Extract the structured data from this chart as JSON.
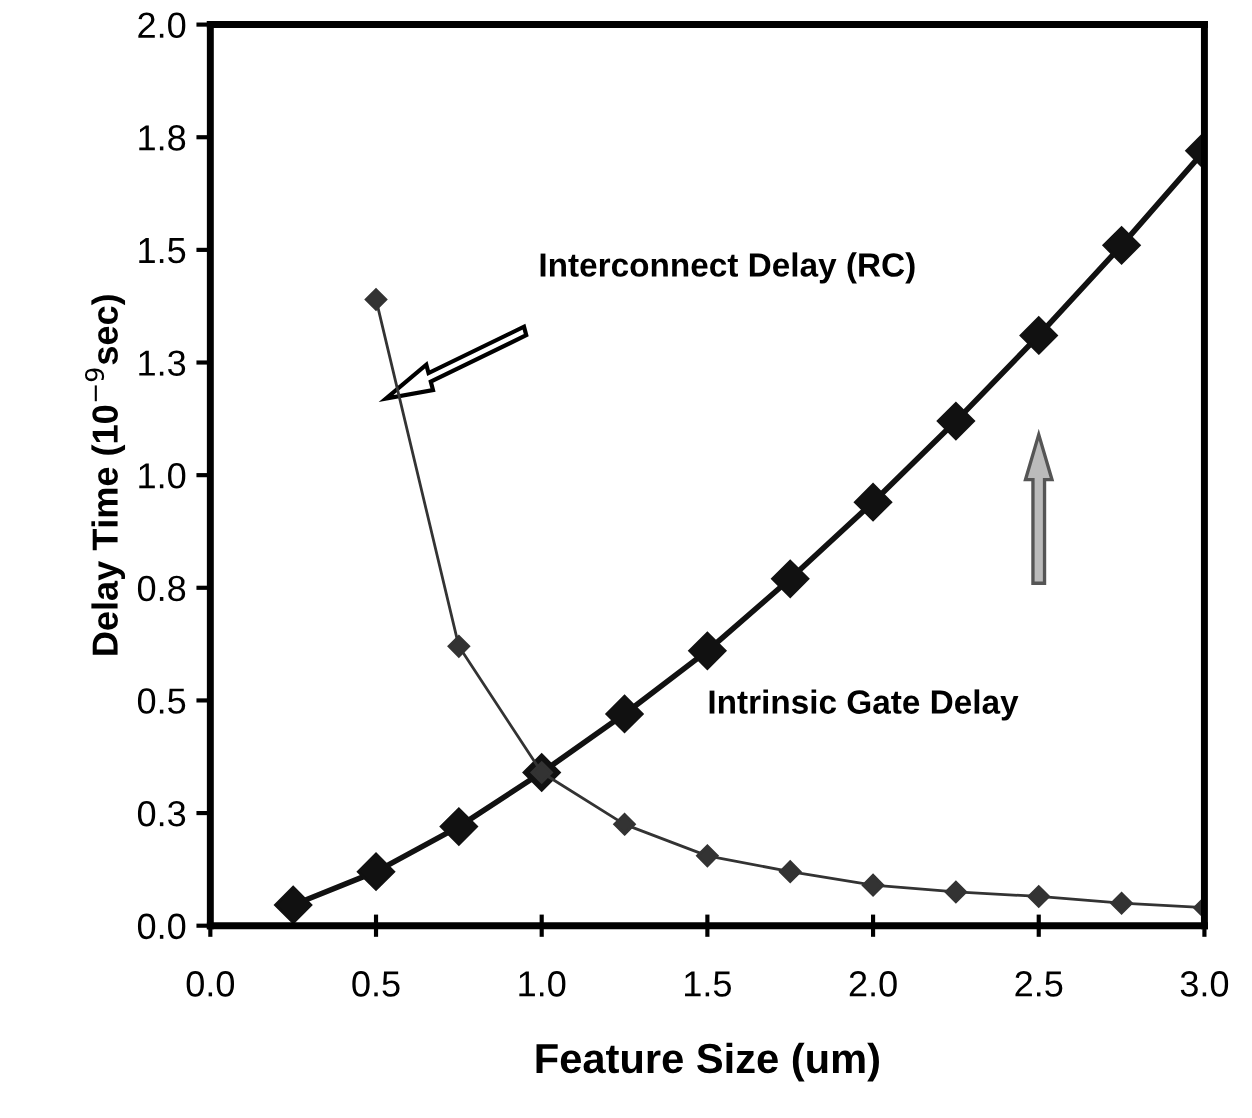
{
  "chart_data": {
    "type": "line",
    "xlabel": "Feature Size (um)",
    "ylabel": "Delay Time (10$^{−9}$sec)",
    "x": [
      0.25,
      0.5,
      0.75,
      1.0,
      1.25,
      1.5,
      1.75,
      2.0,
      2.25,
      2.5,
      2.75,
      3.0
    ],
    "series": [
      {
        "color": "#111111",
        "values": [
          0.046,
          0.12,
          0.22,
          0.34,
          0.47,
          0.61,
          0.77,
          0.94,
          1.12,
          1.31,
          1.51,
          1.72
        ]
      },
      {
        "color": "#333333",
        "x": [
          0.5,
          0.75,
          1.0,
          1.25,
          1.5,
          1.75,
          2.0,
          2.25,
          2.5,
          2.75,
          3.0
        ],
        "values": [
          1.39,
          0.62,
          0.34,
          0.225,
          0.155,
          0.12,
          0.09,
          0.075,
          0.065,
          0.05,
          0.04
        ]
      }
    ],
    "annotations": [
      "Interconnect Delay (RC)",
      "Intrinsic Gate Delay"
    ],
    "xlim": [
      0,
      3.0
    ],
    "ylim": [
      0,
      2.0
    ],
    "xticks": [
      {
        "value": 0,
        "label": "0.0"
      },
      0.5,
      {
        "value": 1,
        "label": "1.0"
      },
      1.5,
      {
        "value": 2,
        "label": "2.0"
      },
      2.5,
      {
        "value": 3,
        "label": "3.0"
      }
    ],
    "yticks": [
      {
        "value": 0,
        "label": "0.0"
      },
      {
        "value": 0.25,
        "label": "0.3"
      },
      0.5,
      {
        "value": 0.75,
        "label": "0.8"
      },
      {
        "value": 1,
        "label": "1.0"
      },
      {
        "value": 1.25,
        "label": "1.3"
      },
      1.5,
      {
        "value": 1.75,
        "label": "1.8"
      },
      {
        "value": 2,
        "label": "2.0"
      }
    ],
    "marker": "diamond",
    "line_style": "solid",
    "grid": false,
    "legend": false
  }
}
